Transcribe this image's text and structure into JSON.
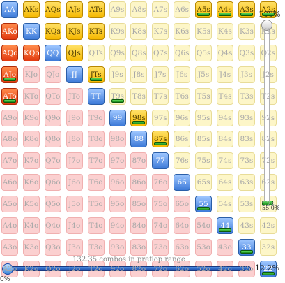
{
  "grid": {
    "cells": [
      [
        "AA",
        "pair"
      ],
      [
        "AKs",
        "gold"
      ],
      [
        "AQs",
        "gold"
      ],
      [
        "AJs",
        "gold"
      ],
      [
        "ATs",
        "gold"
      ],
      [
        "A9s",
        "suited"
      ],
      [
        "A8s",
        "suited"
      ],
      [
        "A7s",
        "suited"
      ],
      [
        "A6s",
        "suited"
      ],
      [
        "A5s",
        "goldbar"
      ],
      [
        "A4s",
        "goldbar"
      ],
      [
        "A3s",
        "goldbar"
      ],
      [
        "A2s",
        "goldbar"
      ],
      [
        "AKo",
        "raise"
      ],
      [
        "KK",
        "pair"
      ],
      [
        "KQs",
        "gold"
      ],
      [
        "KJs",
        "gold"
      ],
      [
        "KTs",
        "gold"
      ],
      [
        "K9s",
        "suited"
      ],
      [
        "K8s",
        "suited"
      ],
      [
        "K7s",
        "suited"
      ],
      [
        "K6s",
        "suited"
      ],
      [
        "K5s",
        "suited"
      ],
      [
        "K4s",
        "suited"
      ],
      [
        "K3s",
        "suited"
      ],
      [
        "K2s",
        "suited"
      ],
      [
        "AQo",
        "raise"
      ],
      [
        "KQo",
        "raise"
      ],
      [
        "QQ",
        "pair"
      ],
      [
        "QJs",
        "gold"
      ],
      [
        "QTs",
        "suited"
      ],
      [
        "Q9s",
        "suited"
      ],
      [
        "Q8s",
        "suited"
      ],
      [
        "Q7s",
        "suited"
      ],
      [
        "Q6s",
        "suited"
      ],
      [
        "Q5s",
        "suited"
      ],
      [
        "Q4s",
        "suited"
      ],
      [
        "Q3s",
        "suited"
      ],
      [
        "Q2s",
        "suited"
      ],
      [
        "AJo",
        "raisebar"
      ],
      [
        "KJo",
        "off"
      ],
      [
        "QJo",
        "off"
      ],
      [
        "JJ",
        "pair"
      ],
      [
        "JTs",
        "goldbar"
      ],
      [
        "J9s",
        "suited"
      ],
      [
        "J8s",
        "suited"
      ],
      [
        "J7s",
        "suited"
      ],
      [
        "J6s",
        "suited"
      ],
      [
        "J5s",
        "suited"
      ],
      [
        "J4s",
        "suited"
      ],
      [
        "J3s",
        "suited"
      ],
      [
        "J2s",
        "suited"
      ],
      [
        "ATo",
        "raisebar"
      ],
      [
        "KTo",
        "off"
      ],
      [
        "QTo",
        "off"
      ],
      [
        "JTo",
        "off"
      ],
      [
        "TT",
        "pair"
      ],
      [
        "T9s",
        "suitedbar"
      ],
      [
        "T8s",
        "suited"
      ],
      [
        "T7s",
        "suited"
      ],
      [
        "T6s",
        "suited"
      ],
      [
        "T5s",
        "suited"
      ],
      [
        "T4s",
        "suited"
      ],
      [
        "T3s",
        "suited"
      ],
      [
        "T2s",
        "suited"
      ],
      [
        "A9o",
        "off"
      ],
      [
        "K9o",
        "off"
      ],
      [
        "Q9o",
        "off"
      ],
      [
        "J9o",
        "off"
      ],
      [
        "T9o",
        "off"
      ],
      [
        "99",
        "pair"
      ],
      [
        "98s",
        "goldbar"
      ],
      [
        "97s",
        "suited"
      ],
      [
        "96s",
        "suited"
      ],
      [
        "95s",
        "suited"
      ],
      [
        "94s",
        "suited"
      ],
      [
        "93s",
        "suited"
      ],
      [
        "92s",
        "suited"
      ],
      [
        "A8o",
        "off"
      ],
      [
        "K8o",
        "off"
      ],
      [
        "Q8o",
        "off"
      ],
      [
        "J8o",
        "off"
      ],
      [
        "T8o",
        "off"
      ],
      [
        "98o",
        "off"
      ],
      [
        "88",
        "pair"
      ],
      [
        "87s",
        "goldbar"
      ],
      [
        "86s",
        "suited"
      ],
      [
        "85s",
        "suited"
      ],
      [
        "84s",
        "suited"
      ],
      [
        "83s",
        "suited"
      ],
      [
        "82s",
        "suited"
      ],
      [
        "A7o",
        "off"
      ],
      [
        "K7o",
        "off"
      ],
      [
        "Q7o",
        "off"
      ],
      [
        "J7o",
        "off"
      ],
      [
        "T7o",
        "off"
      ],
      [
        "97o",
        "off"
      ],
      [
        "87o",
        "off"
      ],
      [
        "77",
        "pair"
      ],
      [
        "76s",
        "suited"
      ],
      [
        "75s",
        "suited"
      ],
      [
        "74s",
        "suited"
      ],
      [
        "73s",
        "suited"
      ],
      [
        "72s",
        "suited"
      ],
      [
        "A6o",
        "off"
      ],
      [
        "K6o",
        "off"
      ],
      [
        "Q6o",
        "off"
      ],
      [
        "J6o",
        "off"
      ],
      [
        "T6o",
        "off"
      ],
      [
        "96o",
        "off"
      ],
      [
        "86o",
        "off"
      ],
      [
        "76o",
        "off"
      ],
      [
        "66",
        "pair"
      ],
      [
        "65s",
        "suited"
      ],
      [
        "64s",
        "suited"
      ],
      [
        "63s",
        "suited"
      ],
      [
        "62s",
        "suited"
      ],
      [
        "A5o",
        "off"
      ],
      [
        "K5o",
        "off"
      ],
      [
        "Q5o",
        "off"
      ],
      [
        "J5o",
        "off"
      ],
      [
        "T5o",
        "off"
      ],
      [
        "95o",
        "off"
      ],
      [
        "85o",
        "off"
      ],
      [
        "75o",
        "off"
      ],
      [
        "65o",
        "off"
      ],
      [
        "55",
        "pairbar"
      ],
      [
        "54s",
        "suited"
      ],
      [
        "53s",
        "suited"
      ],
      [
        "52s",
        "suited"
      ],
      [
        "A4o",
        "off"
      ],
      [
        "K4o",
        "off"
      ],
      [
        "Q4o",
        "off"
      ],
      [
        "J4o",
        "off"
      ],
      [
        "T4o",
        "off"
      ],
      [
        "94o",
        "off"
      ],
      [
        "84o",
        "off"
      ],
      [
        "74o",
        "off"
      ],
      [
        "64o",
        "off"
      ],
      [
        "54o",
        "off"
      ],
      [
        "44",
        "pairbar"
      ],
      [
        "43s",
        "suited"
      ],
      [
        "42s",
        "suited"
      ],
      [
        "A3o",
        "off"
      ],
      [
        "K3o",
        "off"
      ],
      [
        "Q3o",
        "off"
      ],
      [
        "J3o",
        "off"
      ],
      [
        "T3o",
        "off"
      ],
      [
        "93o",
        "off"
      ],
      [
        "83o",
        "off"
      ],
      [
        "73o",
        "off"
      ],
      [
        "63o",
        "off"
      ],
      [
        "53o",
        "off"
      ],
      [
        "43o",
        "off"
      ],
      [
        "33",
        "pairbar"
      ],
      [
        "32s",
        "suited"
      ],
      [
        "A2o",
        "off"
      ],
      [
        "K2o",
        "off"
      ],
      [
        "Q2o",
        "off"
      ],
      [
        "J2o",
        "off"
      ],
      [
        "T2o",
        "off"
      ],
      [
        "92o",
        "off"
      ],
      [
        "82o",
        "off"
      ],
      [
        "72o",
        "off"
      ],
      [
        "62o",
        "off"
      ],
      [
        "52o",
        "off"
      ],
      [
        "42o",
        "off"
      ],
      [
        "32o",
        "off"
      ],
      [
        "22",
        "pairbar"
      ]
    ]
  },
  "vertical_slider": {
    "top_label": "100%",
    "bottom_label": "55.0%",
    "level_fraction": 1.0
  },
  "horizontal_slider": {
    "combos_text": "132.35 combos in preflop range",
    "percent_label": "12.2%",
    "min_label": "0%",
    "level_fraction": 0.0
  },
  "colors": {
    "pair": "#3d7ad8",
    "raise": "#e23a10",
    "gold": "#f5b800",
    "suited": "#fdf6c8",
    "offsuit": "#fbd0d0",
    "bar": "#1a8a1a"
  }
}
